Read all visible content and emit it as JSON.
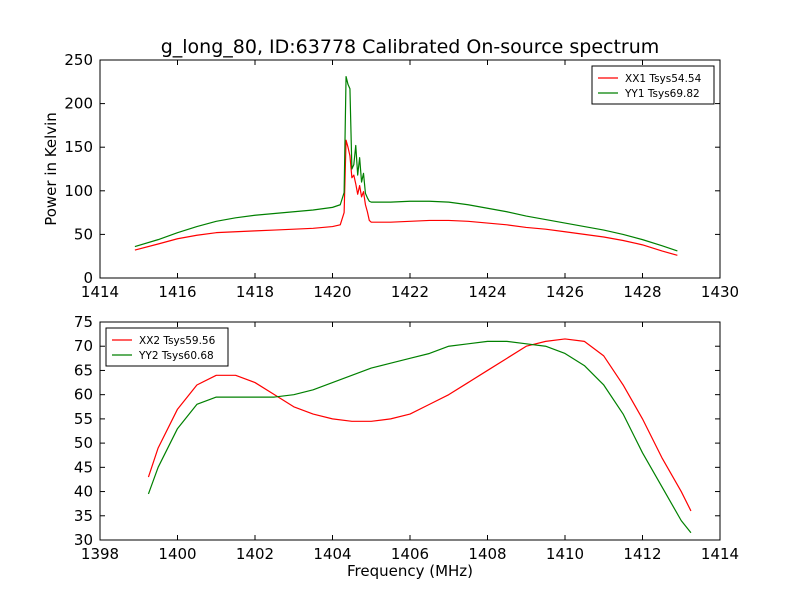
{
  "figure_title": "g_long_80, ID:63778 Calibrated On-source spectrum",
  "chart_data": [
    {
      "type": "line",
      "title": "g_long_80, ID:63778 Calibrated On-source spectrum",
      "xlabel": "",
      "ylabel": "Power in Kelvin",
      "xlim": [
        1414,
        1430
      ],
      "ylim": [
        0,
        250
      ],
      "xticks": [
        1414,
        1416,
        1418,
        1420,
        1422,
        1424,
        1426,
        1428,
        1430
      ],
      "yticks": [
        0,
        50,
        100,
        150,
        200,
        250
      ],
      "grid": false,
      "legend_position": "top-right",
      "series": [
        {
          "name": "XX1 Tsys54.54",
          "color": "#ff0000",
          "x": [
            1414.9,
            1415.5,
            1416,
            1416.5,
            1417,
            1417.5,
            1418,
            1418.5,
            1419,
            1419.5,
            1420,
            1420.2,
            1420.3,
            1420.35,
            1420.4,
            1420.45,
            1420.5,
            1420.55,
            1420.6,
            1420.65,
            1420.7,
            1420.75,
            1420.8,
            1420.85,
            1420.9,
            1420.95,
            1421.0,
            1421.5,
            1422,
            1422.5,
            1423,
            1423.5,
            1424,
            1424.5,
            1425,
            1425.5,
            1426,
            1426.5,
            1427,
            1427.5,
            1428,
            1428.5,
            1428.9
          ],
          "y": [
            32,
            39,
            45,
            49,
            52,
            53,
            54,
            55,
            56,
            57,
            59,
            61,
            75,
            158,
            150,
            140,
            115,
            118,
            108,
            96,
            106,
            93,
            99,
            84,
            76,
            66,
            64,
            64,
            65,
            66,
            66,
            65,
            63,
            61,
            58,
            56,
            53,
            50,
            47,
            43,
            38,
            31,
            26
          ]
        },
        {
          "name": "YY1 Tsys69.82",
          "color": "#008000",
          "x": [
            1414.9,
            1415.5,
            1416,
            1416.5,
            1417,
            1417.5,
            1418,
            1418.5,
            1419,
            1419.5,
            1420,
            1420.2,
            1420.3,
            1420.35,
            1420.4,
            1420.45,
            1420.5,
            1420.55,
            1420.6,
            1420.65,
            1420.7,
            1420.75,
            1420.8,
            1420.85,
            1420.9,
            1420.95,
            1421.0,
            1421.5,
            1422,
            1422.5,
            1423,
            1423.5,
            1424,
            1424.5,
            1425,
            1425.5,
            1426,
            1426.5,
            1427,
            1427.5,
            1428,
            1428.5,
            1428.9
          ],
          "y": [
            36,
            44,
            52,
            59,
            65,
            69,
            72,
            74,
            76,
            78,
            81,
            84,
            98,
            231,
            222,
            217,
            125,
            130,
            152,
            118,
            138,
            110,
            120,
            97,
            92,
            88,
            87,
            87,
            88,
            88,
            87,
            84,
            80,
            76,
            71,
            67,
            63,
            59,
            55,
            50,
            44,
            37,
            31
          ]
        }
      ]
    },
    {
      "type": "line",
      "title": "",
      "xlabel": "Frequency (MHz)",
      "ylabel": "",
      "xlim": [
        1398,
        1414
      ],
      "ylim": [
        30,
        75
      ],
      "xticks": [
        1398,
        1400,
        1402,
        1404,
        1406,
        1408,
        1410,
        1412,
        1414
      ],
      "yticks": [
        30,
        35,
        40,
        45,
        50,
        55,
        60,
        65,
        70,
        75
      ],
      "grid": false,
      "legend_position": "top-left",
      "series": [
        {
          "name": "XX2 Tsys59.56",
          "color": "#ff0000",
          "x": [
            1399.25,
            1399.5,
            1400,
            1400.5,
            1401,
            1401.5,
            1402,
            1402.5,
            1403,
            1403.5,
            1404,
            1404.5,
            1405,
            1405.5,
            1406,
            1406.5,
            1407,
            1407.5,
            1408,
            1408.5,
            1409,
            1409.5,
            1410,
            1410.5,
            1411,
            1411.5,
            1412,
            1412.5,
            1413,
            1413.25
          ],
          "y": [
            43,
            49,
            57,
            62,
            64,
            64,
            62.5,
            60,
            57.5,
            56,
            55,
            54.5,
            54.5,
            55,
            56,
            58,
            60,
            62.5,
            65,
            67.5,
            70,
            71,
            71.5,
            71,
            68,
            62,
            55,
            47,
            40,
            36
          ]
        },
        {
          "name": "YY2 Tsys60.68",
          "color": "#008000",
          "x": [
            1399.25,
            1399.5,
            1400,
            1400.5,
            1401,
            1401.5,
            1402,
            1402.5,
            1403,
            1403.5,
            1404,
            1404.5,
            1405,
            1405.5,
            1406,
            1406.5,
            1407,
            1407.5,
            1408,
            1408.5,
            1409,
            1409.5,
            1410,
            1410.5,
            1411,
            1411.5,
            1412,
            1412.5,
            1413,
            1413.25
          ],
          "y": [
            39.5,
            45,
            53,
            58,
            59.5,
            59.5,
            59.5,
            59.5,
            60,
            61,
            62.5,
            64,
            65.5,
            66.5,
            67.5,
            68.5,
            70,
            70.5,
            71,
            71,
            70.5,
            70,
            68.5,
            66,
            62,
            56,
            48,
            41,
            34,
            31.5
          ]
        }
      ]
    }
  ]
}
